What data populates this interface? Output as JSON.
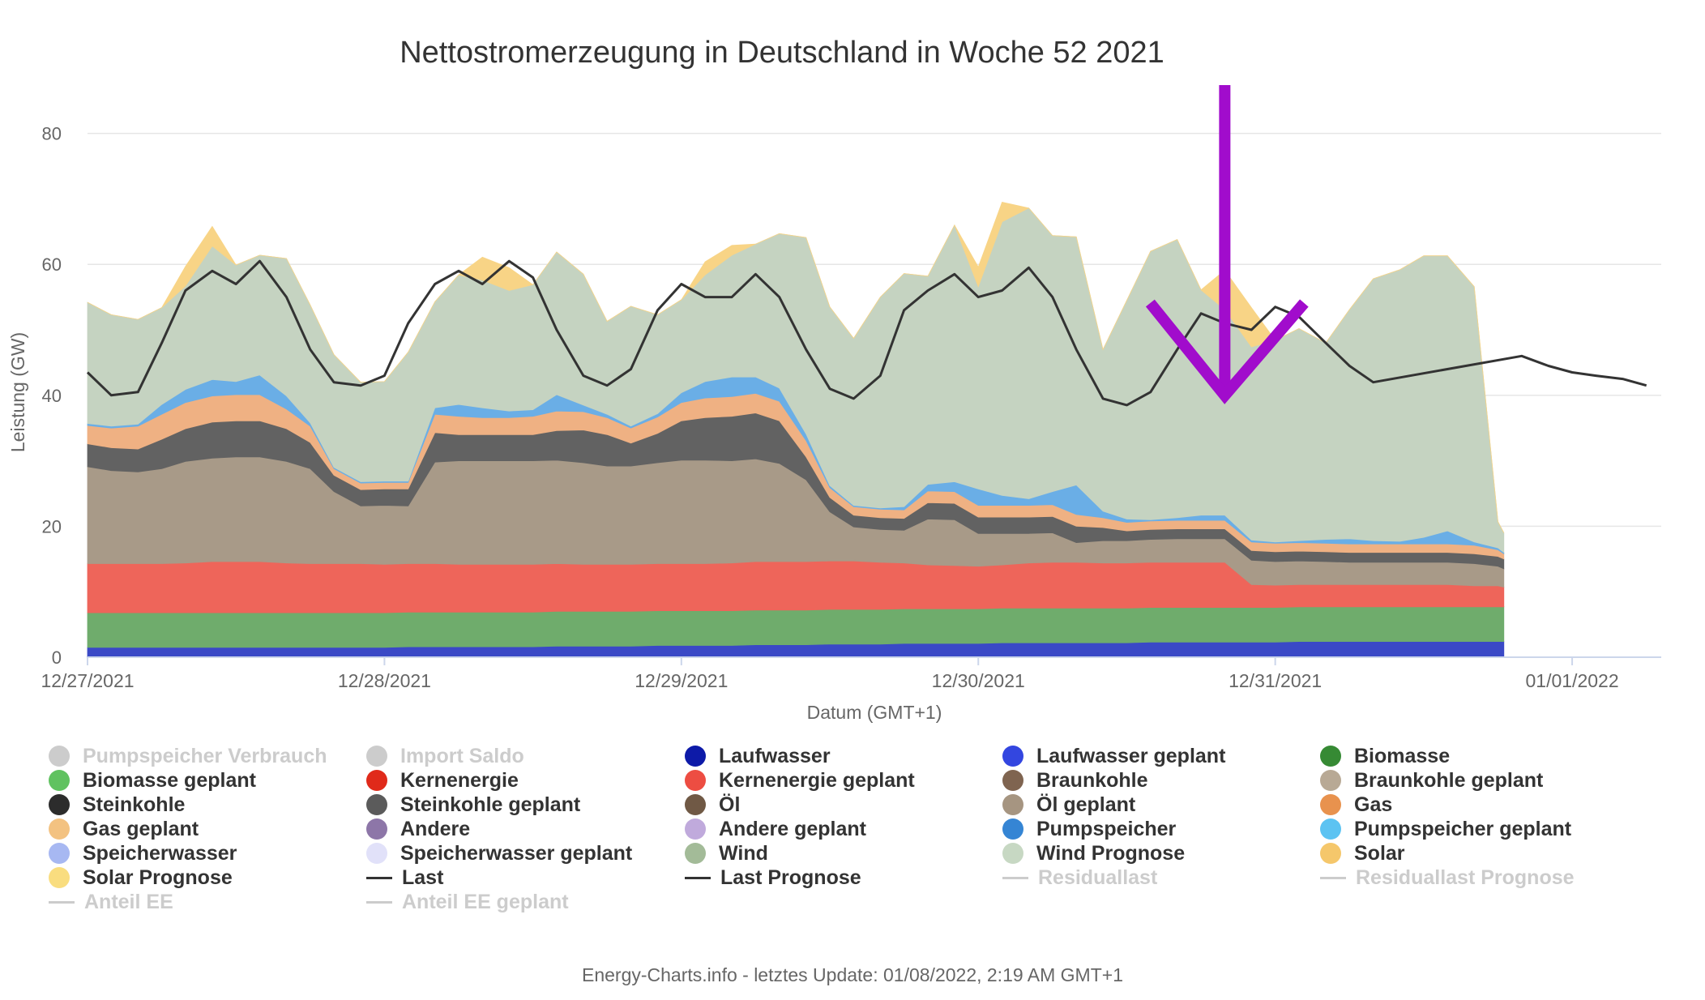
{
  "chart_data": {
    "type": "area",
    "title": "Nettostromerzeugung in Deutschland in Woche 52 2021",
    "ylabel": "Leistung (GW)",
    "xlabel": "Datum (GMT+1)",
    "ylim": [
      0,
      88
    ],
    "yticks": [
      0,
      20,
      40,
      60,
      80
    ],
    "xlim": [
      0,
      5.3
    ],
    "xtick_positions": [
      0,
      1,
      2,
      3,
      4,
      5
    ],
    "xticks": [
      "12/27/2021",
      "12/28/2021",
      "12/29/2021",
      "12/30/2021",
      "12/31/2021",
      "01/01/2022"
    ],
    "grid": true,
    "legend_position": "bottom",
    "x_days": [
      0,
      0.08,
      0.17,
      0.25,
      0.33,
      0.42,
      0.5,
      0.58,
      0.67,
      0.75,
      0.83,
      0.92,
      1.0,
      1.08,
      1.17,
      1.25,
      1.33,
      1.42,
      1.5,
      1.58,
      1.67,
      1.75,
      1.83,
      1.92,
      2.0,
      2.08,
      2.17,
      2.25,
      2.33,
      2.42,
      2.5,
      2.58,
      2.67,
      2.75,
      2.83,
      2.92,
      3.0,
      3.08,
      3.17,
      3.25,
      3.33,
      3.42,
      3.5,
      3.58,
      3.67,
      3.75,
      3.83,
      3.92,
      4.0,
      4.08,
      4.17,
      4.25,
      4.33,
      4.42,
      4.5,
      4.58,
      4.67,
      4.75,
      4.77
    ],
    "series": [
      {
        "name": "Laufwasser",
        "color": "#3a49c6",
        "values": [
          1.5,
          1.5,
          1.5,
          1.5,
          1.5,
          1.5,
          1.5,
          1.5,
          1.5,
          1.5,
          1.5,
          1.5,
          1.5,
          1.6,
          1.6,
          1.6,
          1.6,
          1.6,
          1.6,
          1.7,
          1.7,
          1.7,
          1.7,
          1.8,
          1.8,
          1.8,
          1.8,
          1.9,
          1.9,
          1.9,
          2.0,
          2.0,
          2.0,
          2.1,
          2.1,
          2.1,
          2.1,
          2.2,
          2.2,
          2.2,
          2.2,
          2.2,
          2.2,
          2.3,
          2.3,
          2.3,
          2.3,
          2.3,
          2.3,
          2.4,
          2.4,
          2.4,
          2.4,
          2.4,
          2.4,
          2.4,
          2.4,
          2.4,
          2.4
        ]
      },
      {
        "name": "Biomasse",
        "color": "#6fac6c",
        "values": [
          5.3,
          5.3,
          5.3,
          5.3,
          5.3,
          5.3,
          5.3,
          5.3,
          5.3,
          5.3,
          5.3,
          5.3,
          5.3,
          5.3,
          5.3,
          5.3,
          5.3,
          5.3,
          5.3,
          5.3,
          5.3,
          5.3,
          5.3,
          5.3,
          5.3,
          5.3,
          5.3,
          5.3,
          5.3,
          5.3,
          5.3,
          5.3,
          5.3,
          5.3,
          5.3,
          5.3,
          5.3,
          5.3,
          5.3,
          5.3,
          5.3,
          5.3,
          5.3,
          5.3,
          5.3,
          5.3,
          5.3,
          5.3,
          5.3,
          5.3,
          5.3,
          5.3,
          5.3,
          5.3,
          5.3,
          5.3,
          5.3,
          5.3,
          5.3
        ]
      },
      {
        "name": "Kernenergie",
        "color": "#ee655a",
        "values": [
          7.5,
          7.5,
          7.5,
          7.5,
          7.6,
          7.8,
          7.8,
          7.8,
          7.6,
          7.5,
          7.5,
          7.5,
          7.4,
          7.4,
          7.4,
          7.3,
          7.3,
          7.3,
          7.3,
          7.3,
          7.2,
          7.2,
          7.2,
          7.2,
          7.2,
          7.2,
          7.3,
          7.4,
          7.4,
          7.4,
          7.4,
          7.4,
          7.2,
          7.0,
          6.7,
          6.6,
          6.5,
          6.6,
          6.9,
          7.0,
          7.0,
          6.9,
          6.9,
          6.9,
          6.9,
          6.9,
          6.9,
          3.5,
          3.4,
          3.4,
          3.4,
          3.4,
          3.4,
          3.4,
          3.4,
          3.4,
          3.2,
          3.2,
          3.0
        ]
      },
      {
        "name": "Braunkohle",
        "color": "#a89a88",
        "values": [
          14.8,
          14.2,
          14.0,
          14.5,
          15.5,
          15.8,
          16.0,
          16.0,
          15.5,
          14.5,
          11.0,
          8.8,
          9.0,
          8.8,
          15.5,
          15.8,
          15.8,
          15.8,
          15.8,
          15.8,
          15.5,
          15.0,
          15.0,
          15.4,
          15.8,
          15.8,
          15.6,
          15.7,
          15.0,
          12.5,
          7.5,
          5.2,
          5.0,
          5.0,
          7.0,
          7.0,
          5.0,
          4.8,
          4.5,
          4.5,
          3.0,
          3.4,
          3.4,
          3.5,
          3.6,
          3.6,
          3.6,
          3.7,
          3.6,
          3.6,
          3.5,
          3.4,
          3.4,
          3.4,
          3.4,
          3.4,
          3.4,
          3.0,
          2.8
        ]
      },
      {
        "name": "Steinkohle",
        "color": "#626262",
        "values": [
          3.5,
          3.5,
          3.5,
          4.5,
          5.0,
          5.5,
          5.5,
          5.5,
          5.0,
          4.0,
          2.5,
          2.5,
          2.5,
          2.6,
          4.5,
          4.0,
          4.0,
          4.0,
          4.0,
          4.5,
          5.0,
          4.8,
          3.5,
          4.5,
          6.0,
          6.5,
          6.8,
          7.0,
          6.5,
          3.5,
          2.2,
          1.8,
          1.8,
          1.8,
          2.5,
          2.5,
          2.5,
          2.5,
          2.5,
          2.5,
          2.5,
          2.0,
          1.5,
          1.5,
          1.5,
          1.5,
          1.5,
          1.5,
          1.5,
          1.5,
          1.5,
          1.5,
          1.5,
          1.5,
          1.5,
          1.5,
          1.5,
          1.5,
          1.5
        ]
      },
      {
        "name": "Gas",
        "color": "#efb183",
        "values": [
          2.8,
          3.0,
          3.5,
          3.8,
          4.0,
          4.0,
          4.0,
          4.0,
          3.0,
          2.5,
          1.0,
          1.0,
          1.0,
          1.0,
          2.8,
          2.8,
          2.6,
          2.6,
          2.8,
          3.0,
          2.8,
          2.6,
          2.3,
          2.5,
          2.8,
          3.0,
          3.0,
          3.0,
          3.0,
          2.5,
          1.5,
          1.3,
          1.3,
          1.3,
          1.8,
          1.8,
          1.8,
          1.8,
          1.8,
          1.8,
          1.8,
          1.5,
          1.3,
          1.3,
          1.3,
          1.3,
          1.3,
          1.3,
          1.3,
          1.3,
          1.3,
          1.3,
          1.3,
          1.3,
          1.3,
          1.3,
          1.3,
          1.0,
          0.8
        ]
      },
      {
        "name": "Pumpspeicher",
        "color": "#6aaee6",
        "values": [
          0.3,
          0.3,
          0.3,
          1.5,
          2.0,
          2.5,
          2.0,
          3.0,
          2.0,
          0.5,
          0.2,
          0.2,
          0.2,
          0.2,
          1.0,
          1.8,
          1.5,
          1.0,
          1.0,
          2.5,
          1.0,
          0.5,
          0.3,
          0.5,
          1.5,
          2.5,
          3.0,
          2.5,
          2.0,
          1.0,
          0.3,
          0.2,
          0.2,
          0.5,
          1.0,
          1.5,
          2.5,
          1.5,
          1.0,
          2.0,
          4.5,
          1.0,
          0.5,
          0.2,
          0.4,
          0.8,
          0.8,
          0.3,
          0.2,
          0.3,
          0.6,
          0.8,
          0.5,
          0.4,
          1.0,
          2.0,
          0.5,
          0.3,
          0.2
        ]
      },
      {
        "name": "Wind Prognose",
        "color": "#c5d3c1",
        "values": [
          18.5,
          17.0,
          16.0,
          14.8,
          15.8,
          20.4,
          17.8,
          18.3,
          21.0,
          18.0,
          17.2,
          15.2,
          15.2,
          19.7,
          16.2,
          19.8,
          19.5,
          18.4,
          19.1,
          21.8,
          20.0,
          14.2,
          18.3,
          15.1,
          14.2,
          16.3,
          18.6,
          20.3,
          23.6,
          30.0,
          27.3,
          25.5,
          32.2,
          35.6,
          31.8,
          39.2,
          30.9,
          41.8,
          44.4,
          39.1,
          37.9,
          24.7,
          33.4,
          41.0,
          42.5,
          34.4,
          31.4,
          29.5,
          30.8,
          32.4,
          30.0,
          35.0,
          40.0,
          41.5,
          43.0,
          42.0,
          39.0,
          4.0,
          3.0
        ]
      },
      {
        "name": "Solar",
        "color": "#f8d486",
        "values": [
          0,
          0,
          0,
          0,
          3.0,
          3.0,
          0,
          0,
          0,
          0,
          0,
          0,
          0,
          0,
          0,
          0,
          3.5,
          3.5,
          0,
          0,
          0,
          0,
          0,
          0,
          0,
          2.0,
          1.5,
          0,
          0,
          0,
          0,
          0,
          0,
          0,
          0,
          0,
          3.0,
          3.0,
          0,
          0,
          0,
          0,
          0,
          0,
          0,
          0,
          6.0,
          6.0,
          0,
          0,
          0,
          0,
          0,
          0,
          0,
          0,
          0,
          0,
          0
        ]
      },
      {
        "name": "Last",
        "color": "#333333",
        "line": true,
        "values": [
          43.5,
          40.0,
          40.5,
          48.0,
          56.0,
          59.0,
          57.0,
          60.5,
          55.0,
          47.0,
          42.0,
          41.5,
          43.0,
          51.0,
          57.0,
          59.0,
          57.0,
          60.5,
          58.0,
          50.0,
          43.0,
          41.5,
          44.0,
          53.0,
          57.0,
          55.0,
          55.0,
          58.5,
          55.0,
          47.0,
          41.0,
          39.5,
          43.0,
          53.0,
          56.0,
          58.5,
          55.0,
          56.0,
          59.5,
          55.0,
          47.0,
          39.5,
          38.5,
          40.5,
          47.0,
          52.5,
          51.0,
          50.0,
          53.5,
          52.0,
          48.0,
          44.5,
          42.0,
          null,
          null,
          null,
          null,
          null,
          null
        ]
      }
    ],
    "last_extension": {
      "x": [
        4.83,
        4.92,
        5.0,
        5.08,
        5.17,
        5.25
      ],
      "values": [
        46.0,
        44.5,
        43.5,
        43.0,
        42.5,
        41.5
      ]
    },
    "annotation_arrow_color": "#a10ccc",
    "annotation_arrow_x": 3.83,
    "legend": {
      "columns": 5,
      "items": [
        {
          "label": "Pumpspeicher Verbrauch",
          "color": "#cccccc",
          "symbol": "dot",
          "disabled": true
        },
        {
          "label": "Import Saldo",
          "color": "#cccccc",
          "symbol": "dot",
          "disabled": true
        },
        {
          "label": "Laufwasser",
          "color": "#0d1aa8",
          "symbol": "dot",
          "disabled": false
        },
        {
          "label": "Laufwasser geplant",
          "color": "#3346e0",
          "symbol": "dot",
          "disabled": false
        },
        {
          "label": "Biomasse",
          "color": "#368a34",
          "symbol": "dot",
          "disabled": false
        },
        {
          "label": "Biomasse geplant",
          "color": "#60c260",
          "symbol": "dot",
          "disabled": false
        },
        {
          "label": "Kernenergie",
          "color": "#e02a1a",
          "symbol": "dot",
          "disabled": false
        },
        {
          "label": "Kernenergie geplant",
          "color": "#ed4d42",
          "symbol": "dot",
          "disabled": false
        },
        {
          "label": "Braunkohle",
          "color": "#7f6450",
          "symbol": "dot",
          "disabled": false
        },
        {
          "label": "Braunkohle geplant",
          "color": "#b8a995",
          "symbol": "dot",
          "disabled": false
        },
        {
          "label": "Steinkohle",
          "color": "#2c2c2c",
          "symbol": "dot",
          "disabled": false
        },
        {
          "label": "Steinkohle geplant",
          "color": "#5b5b5b",
          "symbol": "dot",
          "disabled": false
        },
        {
          "label": "Öl",
          "color": "#705945",
          "symbol": "dot",
          "disabled": false
        },
        {
          "label": "Öl geplant",
          "color": "#a69581",
          "symbol": "dot",
          "disabled": false
        },
        {
          "label": "Gas",
          "color": "#e8924e",
          "symbol": "dot",
          "disabled": false
        },
        {
          "label": "Gas geplant",
          "color": "#f3c281",
          "symbol": "dot",
          "disabled": false
        },
        {
          "label": "Andere",
          "color": "#8d76a8",
          "symbol": "dot",
          "disabled": false
        },
        {
          "label": "Andere geplant",
          "color": "#c0aadc",
          "symbol": "dot",
          "disabled": false
        },
        {
          "label": "Pumpspeicher",
          "color": "#3585d4",
          "symbol": "dot",
          "disabled": false
        },
        {
          "label": "Pumpspeicher geplant",
          "color": "#5cc3f2",
          "symbol": "dot",
          "disabled": false
        },
        {
          "label": "Speicherwasser",
          "color": "#a7b8f2",
          "symbol": "dot",
          "disabled": false
        },
        {
          "label": "Speicherwasser geplant",
          "color": "#e1e1f9",
          "symbol": "dot",
          "disabled": false
        },
        {
          "label": "Wind",
          "color": "#a3bb98",
          "symbol": "dot",
          "disabled": false
        },
        {
          "label": "Wind Prognose",
          "color": "#c7d8c3",
          "symbol": "dot",
          "disabled": false
        },
        {
          "label": "Solar",
          "color": "#f5c76b",
          "symbol": "dot",
          "disabled": false
        },
        {
          "label": "Solar Prognose",
          "color": "#f9dd7f",
          "symbol": "dot",
          "disabled": false
        },
        {
          "label": "Last",
          "color": "#333333",
          "symbol": "line",
          "disabled": false
        },
        {
          "label": "Last Prognose",
          "color": "#333333",
          "symbol": "line",
          "disabled": false
        },
        {
          "label": "Residuallast",
          "color": "#cccccc",
          "symbol": "line",
          "disabled": true
        },
        {
          "label": "Residuallast Prognose",
          "color": "#cccccc",
          "symbol": "line",
          "disabled": true
        },
        {
          "label": "Anteil EE",
          "color": "#cccccc",
          "symbol": "line",
          "disabled": true
        },
        {
          "label": "Anteil EE geplant",
          "color": "#cccccc",
          "symbol": "line",
          "disabled": true
        }
      ]
    }
  },
  "footer": "Energy-Charts.info - letztes Update: 01/08/2022, 2:19 AM GMT+1"
}
